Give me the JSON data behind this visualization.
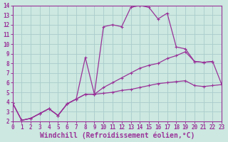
{
  "bg_color": "#cce8e0",
  "grid_color": "#aacccc",
  "line_color": "#993399",
  "xlabel": "Windchill (Refroidissement éolien,°C)",
  "xlim": [
    0,
    23
  ],
  "ylim": [
    2,
    14
  ],
  "xticks": [
    0,
    1,
    2,
    3,
    4,
    5,
    6,
    7,
    8,
    9,
    10,
    11,
    12,
    13,
    14,
    15,
    16,
    17,
    18,
    19,
    20,
    21,
    22,
    23
  ],
  "yticks": [
    2,
    3,
    4,
    5,
    6,
    7,
    8,
    9,
    10,
    11,
    12,
    13,
    14
  ],
  "curve1_x": [
    0,
    1,
    2,
    3,
    4,
    5,
    6,
    7,
    8,
    9,
    10,
    11,
    12,
    13,
    14,
    15,
    16,
    17,
    18,
    19,
    20,
    21,
    22
  ],
  "curve1_y": [
    3.9,
    2.1,
    2.3,
    2.8,
    3.3,
    2.6,
    3.8,
    4.3,
    8.6,
    4.8,
    11.8,
    12.0,
    11.8,
    13.8,
    14.0,
    13.8,
    12.6,
    13.2,
    9.7,
    9.5,
    8.2,
    8.1,
    8.2
  ],
  "curve2_x": [
    0,
    1,
    2,
    3,
    4,
    5,
    6,
    7,
    8,
    9,
    10,
    11,
    12,
    13,
    14,
    15,
    16,
    17,
    18,
    19,
    20,
    21,
    22,
    23
  ],
  "curve2_y": [
    3.9,
    2.1,
    2.3,
    2.8,
    3.3,
    2.6,
    3.8,
    4.3,
    4.8,
    4.8,
    5.5,
    6.0,
    6.5,
    7.0,
    7.5,
    7.8,
    8.0,
    8.5,
    8.8,
    9.2,
    8.2,
    8.1,
    8.2,
    5.8
  ],
  "curve3_x": [
    0,
    1,
    2,
    3,
    4,
    5,
    6,
    7,
    8,
    9,
    10,
    11,
    12,
    13,
    14,
    15,
    16,
    17,
    18,
    19,
    20,
    21,
    22,
    23
  ],
  "curve3_y": [
    3.9,
    2.1,
    2.3,
    2.8,
    3.3,
    2.6,
    3.8,
    4.3,
    4.8,
    4.8,
    4.9,
    5.0,
    5.2,
    5.3,
    5.5,
    5.7,
    5.9,
    6.0,
    6.1,
    6.2,
    5.7,
    5.6,
    5.7,
    5.8
  ],
  "tick_fontsize": 5.5,
  "label_fontsize": 7.0,
  "marker_size": 2.5,
  "line_width": 0.9
}
